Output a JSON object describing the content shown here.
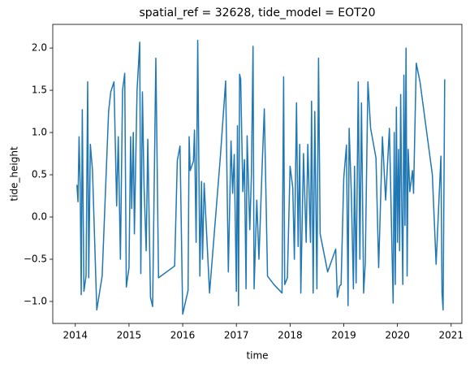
{
  "chart_data": {
    "type": "line",
    "title": "spatial_ref = 32628, tide_model = EOT20",
    "x_label": "time",
    "y_label": "tide_height",
    "xlim": [
      2013.58,
      2021.2
    ],
    "ylim": [
      -1.26,
      2.28
    ],
    "xticks": [
      2014,
      2015,
      2016,
      2017,
      2018,
      2019,
      2020,
      2021
    ],
    "yticks": [
      {
        "value": -1.0,
        "label": "−1.0"
      },
      {
        "value": -0.5,
        "label": "−0.5"
      },
      {
        "value": 0.0,
        "label": "0.0"
      },
      {
        "value": 0.5,
        "label": "0.5"
      },
      {
        "value": 1.0,
        "label": "1.0"
      },
      {
        "value": 1.5,
        "label": "1.5"
      },
      {
        "value": 2.0,
        "label": "2.0"
      }
    ],
    "series": [
      {
        "color": "#1f77b4",
        "x": [
          2014.03,
          2014.05,
          2014.07,
          2014.09,
          2014.11,
          2014.13,
          2014.16,
          2014.2,
          2014.23,
          2014.25,
          2014.28,
          2014.32,
          2014.4,
          2014.5,
          2014.62,
          2014.66,
          2014.72,
          2014.77,
          2014.8,
          2014.84,
          2014.88,
          2014.92,
          2014.95,
          2015.0,
          2015.03,
          2015.05,
          2015.08,
          2015.1,
          2015.15,
          2015.2,
          2015.22,
          2015.25,
          2015.28,
          2015.32,
          2015.35,
          2015.4,
          2015.44,
          2015.5,
          2015.55,
          2015.85,
          2015.9,
          2015.95,
          2016.0,
          2016.1,
          2016.12,
          2016.14,
          2016.2,
          2016.22,
          2016.25,
          2016.28,
          2016.32,
          2016.35,
          2016.37,
          2016.4,
          2016.5,
          2016.7,
          2016.8,
          2016.85,
          2016.9,
          2016.93,
          2016.96,
          2017.0,
          2017.02,
          2017.04,
          2017.06,
          2017.08,
          2017.12,
          2017.15,
          2017.18,
          2017.2,
          2017.25,
          2017.28,
          2017.31,
          2017.33,
          2017.38,
          2017.42,
          2017.48,
          2017.52,
          2017.58,
          2017.7,
          2017.85,
          2017.88,
          2017.9,
          2017.95,
          2018.0,
          2018.05,
          2018.08,
          2018.12,
          2018.15,
          2018.18,
          2018.2,
          2018.25,
          2018.3,
          2018.33,
          2018.38,
          2018.4,
          2018.43,
          2018.46,
          2018.5,
          2018.53,
          2018.56,
          2018.7,
          2018.85,
          2018.88,
          2018.92,
          2018.95,
          2019.0,
          2019.05,
          2019.08,
          2019.1,
          2019.14,
          2019.18,
          2019.2,
          2019.23,
          2019.27,
          2019.3,
          2019.33,
          2019.37,
          2019.4,
          2019.45,
          2019.5,
          2019.6,
          2019.65,
          2019.72,
          2019.78,
          2019.85,
          2019.92,
          2019.94,
          2019.96,
          2019.98,
          2020.0,
          2020.02,
          2020.04,
          2020.06,
          2020.08,
          2020.1,
          2020.12,
          2020.14,
          2020.16,
          2020.18,
          2020.2,
          2020.23,
          2020.28,
          2020.3,
          2020.35,
          2020.42,
          2020.65,
          2020.72,
          2020.78,
          2020.81,
          2020.83,
          2020.85,
          2020.87,
          2020.88
        ],
        "values": [
          0.38,
          0.18,
          0.95,
          0.4,
          -0.92,
          1.27,
          -0.88,
          -0.7,
          1.6,
          -0.72,
          0.86,
          0.55,
          -1.1,
          -0.7,
          1.25,
          1.48,
          1.6,
          0.13,
          0.95,
          -0.5,
          1.5,
          1.7,
          -0.83,
          -0.6,
          0.95,
          0.1,
          1.0,
          -0.2,
          1.5,
          2.07,
          -0.67,
          1.48,
          0.37,
          -0.4,
          0.92,
          -0.95,
          -1.06,
          1.88,
          -0.72,
          -0.58,
          0.67,
          0.84,
          -1.15,
          -0.87,
          0.95,
          0.55,
          0.66,
          1.03,
          -0.3,
          2.09,
          -0.7,
          0.42,
          -0.5,
          0.4,
          -0.9,
          0.7,
          1.61,
          -0.65,
          0.9,
          0.28,
          0.74,
          -0.88,
          1.08,
          -1.05,
          1.69,
          1.63,
          0.3,
          0.68,
          -0.85,
          0.96,
          -0.15,
          0.5,
          2.02,
          -0.85,
          0.2,
          -0.5,
          0.6,
          1.28,
          -0.7,
          -0.8,
          -0.9,
          1.66,
          -0.8,
          -0.72,
          0.6,
          0.35,
          -0.5,
          1.35,
          -0.35,
          0.86,
          -0.9,
          0.75,
          -0.3,
          0.86,
          -0.3,
          1.37,
          -0.9,
          1.25,
          -0.85,
          1.88,
          -0.2,
          -0.65,
          -0.38,
          -0.95,
          -0.82,
          -0.8,
          0.46,
          0.85,
          -1.05,
          1.05,
          0.3,
          -0.85,
          0.6,
          -0.78,
          1.6,
          -0.5,
          1.35,
          -0.9,
          -0.55,
          1.6,
          1.05,
          0.7,
          -0.6,
          0.95,
          0.2,
          1.05,
          -1.02,
          1.0,
          -0.8,
          1.3,
          -0.3,
          0.8,
          -0.4,
          1.45,
          0.1,
          -0.8,
          1.68,
          -0.1,
          2.0,
          -0.7,
          0.8,
          0.3,
          0.55,
          0.28,
          1.82,
          1.6,
          0.5,
          -0.56,
          0.3,
          0.72,
          -0.9,
          -1.1,
          0.7,
          1.63
        ]
      }
    ]
  }
}
